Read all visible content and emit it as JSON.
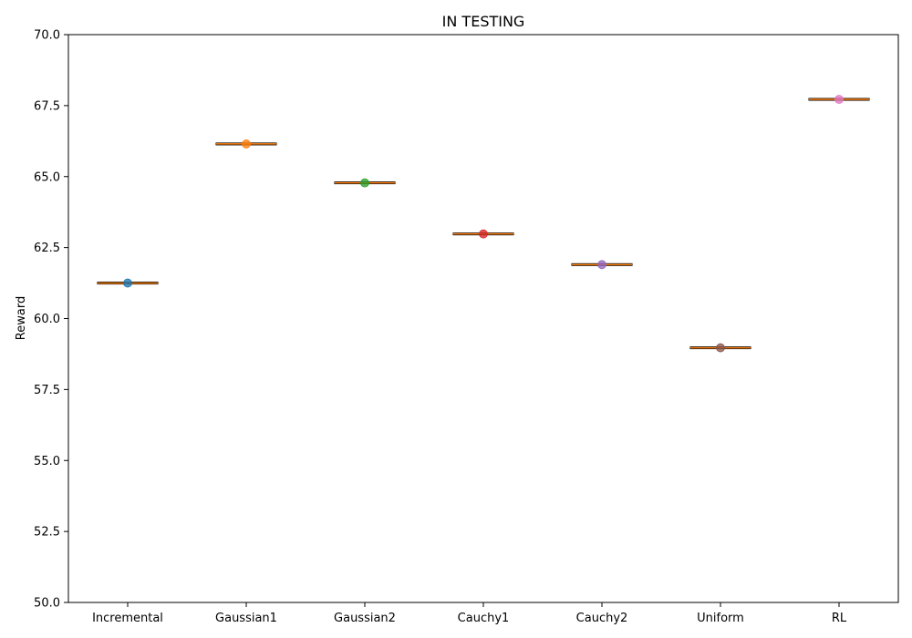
{
  "chart_data": {
    "type": "box",
    "title": "IN TESTING",
    "xlabel": "",
    "ylabel": "Reward",
    "categories": [
      "Incremental",
      "Gaussian1",
      "Gaussian2",
      "Cauchy1",
      "Cauchy2",
      "Uniform",
      "RL"
    ],
    "values": [
      61.25,
      66.15,
      64.78,
      62.98,
      61.9,
      58.97,
      67.72
    ],
    "point_colors": [
      "#1f77b4",
      "#ff7f0e",
      "#2ca02c",
      "#d62728",
      "#9467bd",
      "#8c564b",
      "#e377c2"
    ],
    "median_color": "#ff7f0e",
    "box_color": "#000000",
    "ylim": [
      50.0,
      70.0
    ],
    "yticks": [
      "50.0",
      "52.5",
      "55.0",
      "57.5",
      "60.0",
      "62.5",
      "65.0",
      "67.5",
      "70.0"
    ],
    "grid": false,
    "legend": "none"
  }
}
